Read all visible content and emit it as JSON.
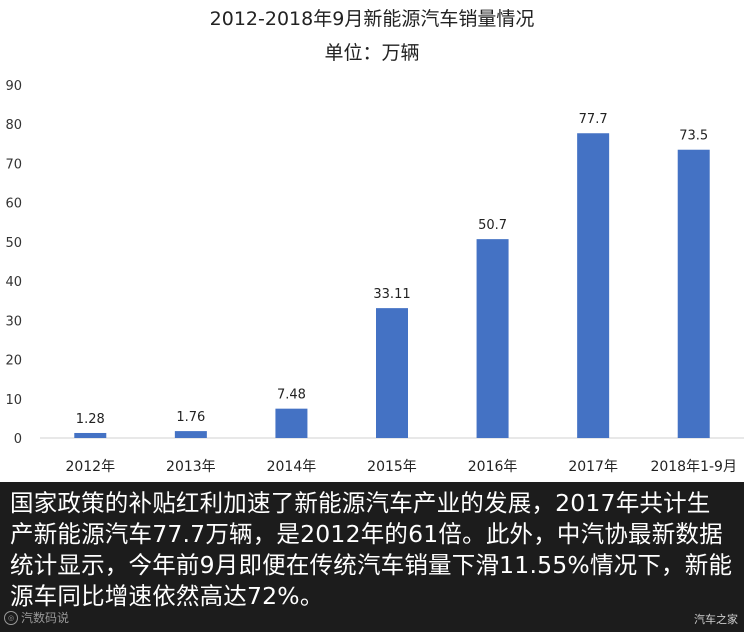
{
  "chart_data": {
    "type": "bar",
    "title": "2012-2018年9月新能源汽车销量情况",
    "subtitle": "单位：万辆",
    "categories": [
      "2012年",
      "2013年",
      "2014年",
      "2015年",
      "2016年",
      "2017年",
      "2018年1-9月"
    ],
    "values": [
      1.28,
      1.76,
      7.48,
      33.11,
      50.7,
      77.7,
      73.5
    ],
    "data_labels": [
      "1.28",
      "1.76",
      "7.48",
      "33.11",
      "50.7",
      "77.7",
      "73.5"
    ],
    "ylim": [
      0,
      90
    ],
    "yticks": [
      0,
      10,
      20,
      30,
      40,
      50,
      60,
      70,
      80,
      90
    ],
    "grid": false,
    "bar_color": "#4472C4"
  },
  "caption": {
    "text": "国家政策的补贴红利加速了新能源汽车产业的发展，2017年共计生产新能源汽车77.7万辆，是2012年的61倍。此外，中汽协最新数据统计显示，今年前9月即便在传统汽车销量下滑11.55%情况下，新能源车同比增速依然高达72%。"
  },
  "watermark": {
    "left_text": "汽数码说",
    "left_icon": "logo-icon",
    "right_text": "汽车之家"
  }
}
